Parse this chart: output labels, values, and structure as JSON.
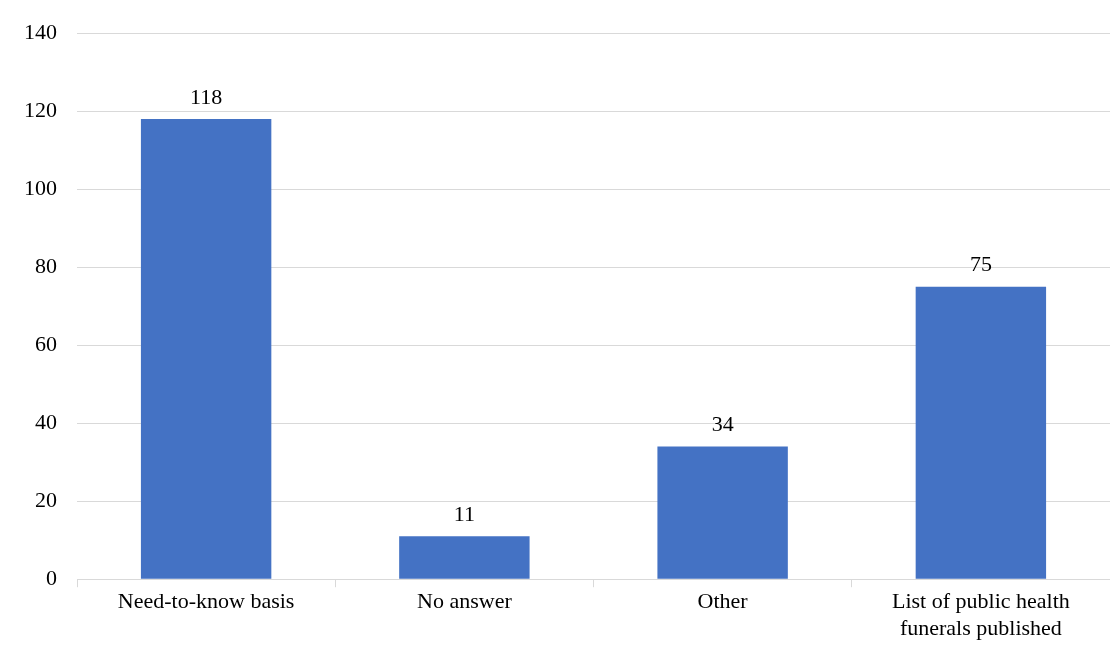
{
  "chart_data": {
    "type": "bar",
    "categories": [
      "Need-to-know basis",
      "No answer",
      "Other",
      "List of public health funerals published"
    ],
    "values": [
      118,
      11,
      34,
      75
    ],
    "color": "#4472c4",
    "ylim": [
      0,
      140
    ],
    "yticks": [
      0,
      20,
      40,
      60,
      80,
      100,
      120,
      140
    ],
    "grid": "y",
    "data_labels": true
  }
}
